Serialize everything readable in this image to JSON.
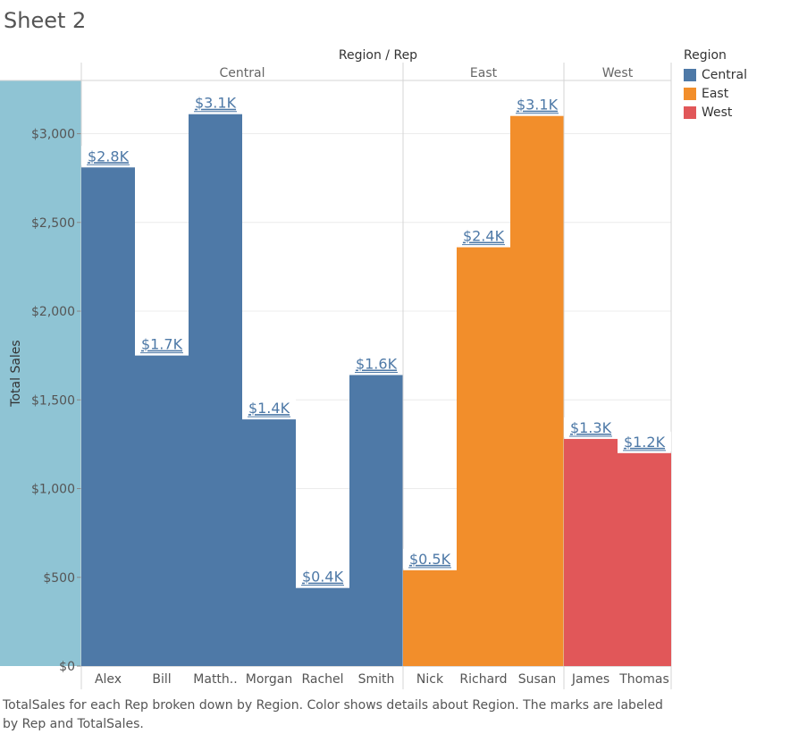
{
  "sheet": {
    "title": "Sheet 2"
  },
  "caption": "TotalSales for each Rep broken down by Region.  Color shows details about Region.  The marks are labeled by Rep and TotalSales.",
  "legend": {
    "title": "Region",
    "items": [
      {
        "label": "Central",
        "color": "#4e79a7"
      },
      {
        "label": "East",
        "color": "#f28e2b"
      },
      {
        "label": "West",
        "color": "#e15759"
      }
    ]
  },
  "chart_data": {
    "type": "bar",
    "title": "Sheet 2",
    "column_header": "Region / Rep",
    "ylabel": "Total Sales",
    "ylim": [
      0,
      3300
    ],
    "yticks": [
      0,
      500,
      1000,
      1500,
      2000,
      2500,
      3000
    ],
    "ytick_labels": [
      "$0",
      "$500",
      "$1,000",
      "$1,500",
      "$2,000",
      "$2,500",
      "$3,000"
    ],
    "grid": true,
    "legend_position": "right",
    "groups": [
      {
        "name": "Central",
        "color": "#4e79a7",
        "reps": [
          "Alex",
          "Bill",
          "Matth..",
          "Morgan",
          "Rachel",
          "Smith"
        ],
        "values": [
          2810,
          1750,
          3110,
          1390,
          440,
          1640
        ],
        "labels": [
          "$2.8K",
          "$1.7K",
          "$3.1K",
          "$1.4K",
          "$0.4K",
          "$1.6K"
        ]
      },
      {
        "name": "East",
        "color": "#f28e2b",
        "reps": [
          "Nick",
          "Richard",
          "Susan"
        ],
        "values": [
          540,
          2360,
          3100
        ],
        "labels": [
          "$0.5K",
          "$2.4K",
          "$3.1K"
        ]
      },
      {
        "name": "West",
        "color": "#e15759",
        "reps": [
          "James",
          "Thomas"
        ],
        "values": [
          1280,
          1200
        ],
        "labels": [
          "$1.3K",
          "$1.2K"
        ]
      }
    ]
  }
}
